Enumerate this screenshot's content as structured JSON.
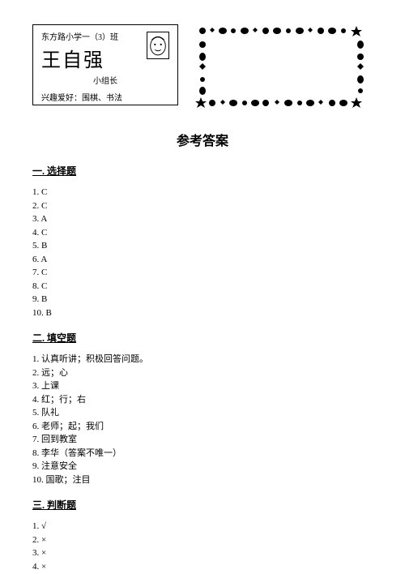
{
  "nameCard": {
    "classLabel": "东方路小学一（3）班",
    "studentName": "王自强",
    "role": "小组长",
    "hobby": "兴趣爱好：围棋、书法"
  },
  "mainTitle": "参考答案",
  "sections": [
    {
      "title": "一. 选择题",
      "answers": [
        "1. C",
        "2. C",
        "3. A",
        "4. C",
        "5. B",
        "6. A",
        "7. C",
        "8. C",
        "9. B",
        "10. B"
      ]
    },
    {
      "title": "二. 填空题",
      "answers": [
        "1. 认真听讲；积极回答问题。",
        "2. 远；心",
        "3. 上课",
        "4. 红；行；右",
        "5. 队礼",
        "6. 老师；起；我们",
        "7. 回到教室",
        "8. 李华（答案不唯一）",
        "9. 注意安全",
        "10. 国歌；注目"
      ]
    },
    {
      "title": "三. 判断题",
      "answers": [
        "1. √",
        "2. ×",
        "3. ×",
        "4. ×"
      ]
    }
  ]
}
